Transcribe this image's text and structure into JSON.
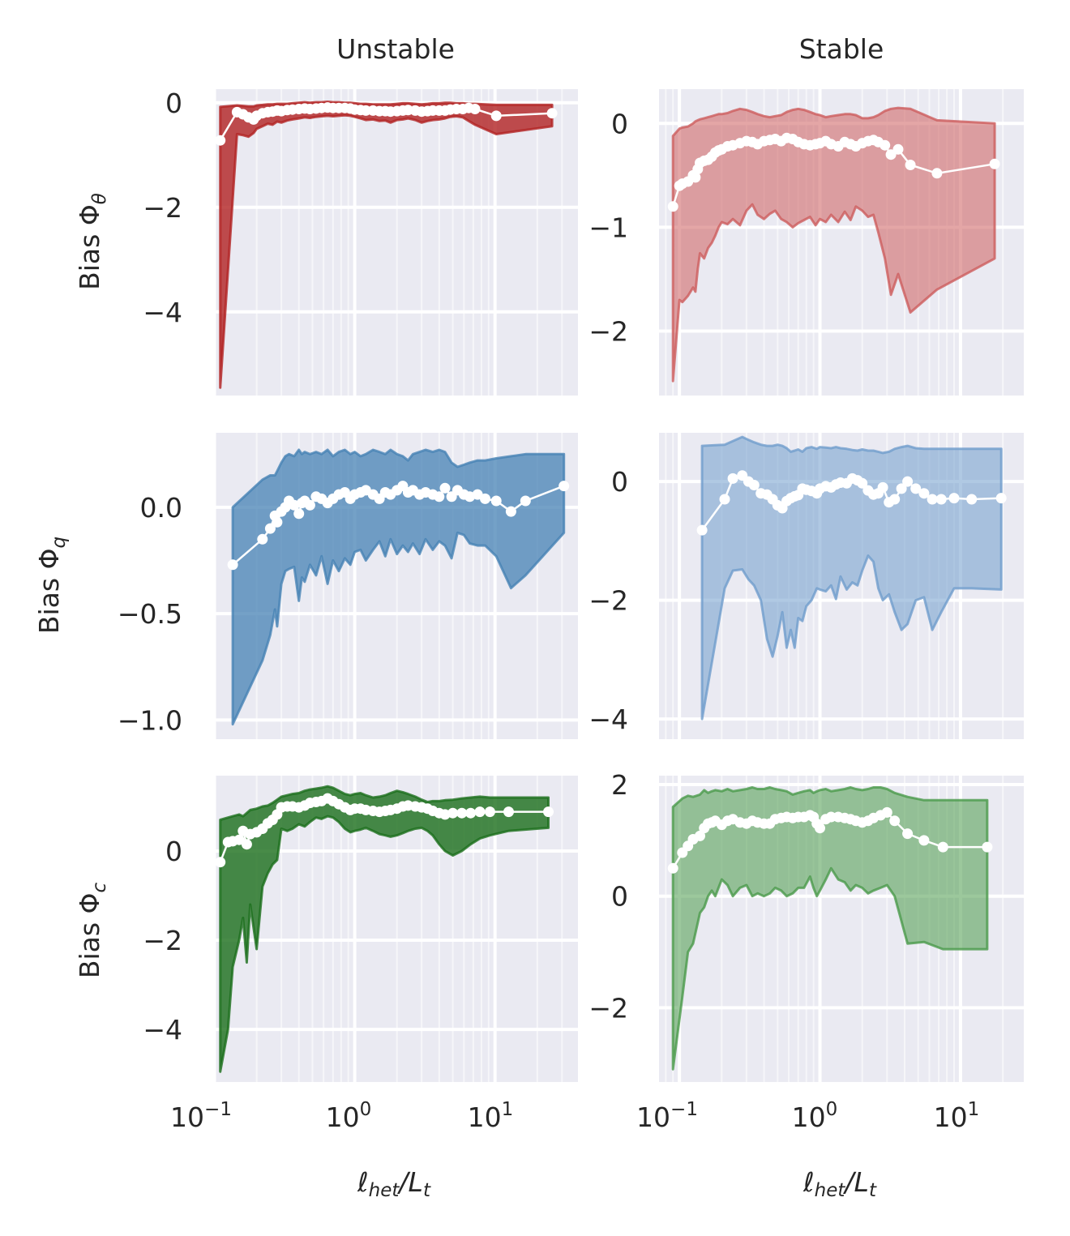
{
  "figure": {
    "column_titles": [
      "Unstable",
      "Stable"
    ],
    "ylabels": [
      {
        "main": "Bias Φ",
        "sub": "θ"
      },
      {
        "main": "Bias Φ",
        "sub": "q"
      },
      {
        "main": "Bias Φ",
        "sub": "c"
      }
    ],
    "xlabel": {
      "l": "ℓ",
      "l_sub": "het",
      "slash": "/L",
      "L_sub": "t"
    },
    "xtick_labels": [
      {
        "base": "10",
        "exp": "−1"
      },
      {
        "base": "10",
        "exp": "0"
      },
      {
        "base": "10",
        "exp": "1"
      }
    ],
    "colors": {
      "background": "#eaeaf2",
      "grid": "#ffffff",
      "unstable_theta": "#b22222",
      "stable_theta": "#cd5c5c",
      "unstable_q": "#4682b4",
      "stable_q": "#6f9ccc",
      "unstable_c": "#1a6e1a",
      "stable_c": "#4a9a4a",
      "median": "#ffffff"
    }
  },
  "chart_data": [
    {
      "type": "area",
      "panel": "unstable-theta",
      "title": "Unstable",
      "ylabel": "Bias Φθ",
      "xscale": "log",
      "xlim": [
        0.098,
        39
      ],
      "ylim": [
        -5.6,
        0.26
      ],
      "yticks": [
        0,
        -2,
        -4
      ],
      "ytick_labels": [
        "0",
        "−2",
        "−4"
      ],
      "color": "unstable_theta",
      "fill_opacity": 0.8,
      "x": [
        0.11,
        0.145,
        0.16,
        0.175,
        0.19,
        0.2,
        0.22,
        0.24,
        0.26,
        0.28,
        0.3,
        0.33,
        0.36,
        0.4,
        0.44,
        0.48,
        0.53,
        0.58,
        0.64,
        0.7,
        0.77,
        0.85,
        0.93,
        1.0,
        1.1,
        1.2,
        1.35,
        1.5,
        1.65,
        1.8,
        2.0,
        2.2,
        2.4,
        2.7,
        3.0,
        3.3,
        3.6,
        4.0,
        4.4,
        4.8,
        5.3,
        5.9,
        6.5,
        7.2,
        10.2,
        25.5
      ],
      "median": [
        -0.72,
        -0.18,
        -0.22,
        -0.28,
        -0.32,
        -0.25,
        -0.2,
        -0.18,
        -0.17,
        -0.15,
        -0.16,
        -0.14,
        -0.13,
        -0.12,
        -0.11,
        -0.12,
        -0.11,
        -0.1,
        -0.09,
        -0.1,
        -0.1,
        -0.1,
        -0.11,
        -0.13,
        -0.14,
        -0.15,
        -0.15,
        -0.16,
        -0.16,
        -0.17,
        -0.16,
        -0.15,
        -0.14,
        -0.15,
        -0.17,
        -0.16,
        -0.15,
        -0.15,
        -0.15,
        -0.13,
        -0.12,
        -0.12,
        -0.1,
        -0.12,
        -0.25,
        -0.2
      ],
      "upper": [
        -0.08,
        -0.05,
        -0.06,
        -0.07,
        -0.07,
        -0.05,
        -0.04,
        -0.03,
        -0.03,
        -0.02,
        -0.02,
        -0.02,
        -0.01,
        0.0,
        0.01,
        0.0,
        0.01,
        0.01,
        0.02,
        0.01,
        0.01,
        0.0,
        0.0,
        -0.01,
        -0.02,
        -0.02,
        -0.03,
        -0.03,
        -0.03,
        -0.03,
        -0.02,
        -0.01,
        -0.01,
        -0.02,
        -0.03,
        -0.02,
        -0.01,
        -0.01,
        0.0,
        0.0,
        -0.01,
        -0.01,
        -0.02,
        -0.02,
        -0.04,
        -0.04
      ],
      "lower": [
        -5.45,
        -0.6,
        -0.62,
        -0.65,
        -0.58,
        -0.5,
        -0.45,
        -0.4,
        -0.42,
        -0.36,
        -0.38,
        -0.34,
        -0.32,
        -0.3,
        -0.28,
        -0.29,
        -0.27,
        -0.26,
        -0.25,
        -0.26,
        -0.25,
        -0.24,
        -0.25,
        -0.27,
        -0.3,
        -0.33,
        -0.32,
        -0.35,
        -0.34,
        -0.38,
        -0.33,
        -0.32,
        -0.3,
        -0.33,
        -0.38,
        -0.35,
        -0.33,
        -0.32,
        -0.3,
        -0.27,
        -0.26,
        -0.28,
        -0.35,
        -0.42,
        -0.6,
        -0.45
      ]
    },
    {
      "type": "area",
      "panel": "stable-theta",
      "title": "Stable",
      "ylabel": "",
      "xscale": "log",
      "xlim": [
        0.0716,
        28.2
      ],
      "ylim": [
        -2.62,
        0.33
      ],
      "yticks": [
        0,
        -1,
        -2
      ],
      "ytick_labels": [
        "0",
        "−1",
        "−2"
      ],
      "color": "stable_theta",
      "fill_opacity": 0.55,
      "x": [
        0.09,
        0.1,
        0.105,
        0.115,
        0.125,
        0.13,
        0.135,
        0.14,
        0.15,
        0.16,
        0.17,
        0.18,
        0.19,
        0.2,
        0.22,
        0.24,
        0.27,
        0.3,
        0.33,
        0.36,
        0.4,
        0.44,
        0.48,
        0.53,
        0.58,
        0.64,
        0.7,
        0.77,
        0.85,
        0.93,
        1.0,
        1.1,
        1.2,
        1.35,
        1.5,
        1.65,
        1.8,
        2.0,
        2.2,
        2.4,
        2.6,
        2.9,
        3.2,
        3.6,
        4.4,
        6.8,
        17.5
      ],
      "median": [
        -0.8,
        -0.6,
        -0.58,
        -0.56,
        -0.5,
        -0.52,
        -0.44,
        -0.38,
        -0.36,
        -0.35,
        -0.32,
        -0.28,
        -0.26,
        -0.25,
        -0.22,
        -0.21,
        -0.19,
        -0.17,
        -0.18,
        -0.2,
        -0.17,
        -0.16,
        -0.15,
        -0.17,
        -0.14,
        -0.15,
        -0.18,
        -0.2,
        -0.21,
        -0.2,
        -0.19,
        -0.17,
        -0.2,
        -0.22,
        -0.18,
        -0.2,
        -0.22,
        -0.19,
        -0.17,
        -0.16,
        -0.18,
        -0.21,
        -0.3,
        -0.25,
        -0.4,
        -0.48,
        -0.39
      ],
      "upper": [
        -0.12,
        -0.05,
        -0.04,
        -0.03,
        0.0,
        0.02,
        0.03,
        0.04,
        0.05,
        0.06,
        0.07,
        0.08,
        0.09,
        0.09,
        0.1,
        0.12,
        0.14,
        0.13,
        0.11,
        0.09,
        0.07,
        0.06,
        0.07,
        0.08,
        0.11,
        0.13,
        0.14,
        0.13,
        0.11,
        0.09,
        0.08,
        0.06,
        0.07,
        0.08,
        0.09,
        0.09,
        0.08,
        0.05,
        0.05,
        0.06,
        0.08,
        0.12,
        0.14,
        0.15,
        0.14,
        0.03,
        0.0
      ],
      "lower": [
        -2.48,
        -1.7,
        -1.72,
        -1.66,
        -1.58,
        -1.62,
        -1.4,
        -1.25,
        -1.3,
        -1.2,
        -1.15,
        -1.08,
        -1.0,
        -0.95,
        -0.97,
        -0.92,
        -0.98,
        -0.84,
        -0.78,
        -0.88,
        -0.92,
        -0.87,
        -0.84,
        -0.92,
        -0.95,
        -1.0,
        -0.96,
        -0.93,
        -0.9,
        -0.98,
        -0.92,
        -0.95,
        -0.88,
        -0.95,
        -0.85,
        -0.93,
        -0.8,
        -0.84,
        -0.9,
        -0.88,
        -1.05,
        -1.3,
        -1.65,
        -1.45,
        -1.82,
        -1.6,
        -1.3
      ]
    },
    {
      "type": "area",
      "panel": "unstable-q",
      "title": "",
      "ylabel": "Bias Φq",
      "xscale": "log",
      "xlim": [
        0.098,
        39
      ],
      "ylim": [
        -1.09,
        0.35
      ],
      "yticks": [
        0.0,
        -0.5,
        -1.0
      ],
      "ytick_labels": [
        "0.0",
        "−0.5",
        "−1.0"
      ],
      "color": "unstable_q",
      "fill_opacity": 0.75,
      "x": [
        0.135,
        0.22,
        0.25,
        0.27,
        0.28,
        0.3,
        0.32,
        0.34,
        0.37,
        0.4,
        0.42,
        0.44,
        0.48,
        0.53,
        0.58,
        0.64,
        0.7,
        0.77,
        0.85,
        0.93,
        1.0,
        1.1,
        1.2,
        1.35,
        1.5,
        1.65,
        1.8,
        2.0,
        2.2,
        2.4,
        2.6,
        2.9,
        3.2,
        3.6,
        4.0,
        4.4,
        4.9,
        5.4,
        6.0,
        6.6,
        7.5,
        8.5,
        10.2,
        13.0,
        16.5,
        31.0
      ],
      "median": [
        -0.27,
        -0.15,
        -0.1,
        -0.04,
        -0.07,
        -0.02,
        0.0,
        0.03,
        0.01,
        -0.03,
        0.02,
        0.03,
        0.01,
        0.05,
        0.04,
        0.02,
        0.04,
        0.06,
        0.07,
        0.04,
        0.06,
        0.07,
        0.08,
        0.06,
        0.04,
        0.07,
        0.06,
        0.08,
        0.1,
        0.07,
        0.08,
        0.06,
        0.07,
        0.06,
        0.05,
        0.09,
        0.05,
        0.08,
        0.06,
        0.05,
        0.06,
        0.04,
        0.03,
        -0.02,
        0.03,
        0.1
      ],
      "upper": [
        0.0,
        0.13,
        0.15,
        0.15,
        0.17,
        0.21,
        0.24,
        0.25,
        0.24,
        0.27,
        0.25,
        0.26,
        0.25,
        0.26,
        0.25,
        0.27,
        0.24,
        0.26,
        0.27,
        0.25,
        0.26,
        0.24,
        0.25,
        0.27,
        0.26,
        0.25,
        0.27,
        0.25,
        0.24,
        0.22,
        0.25,
        0.26,
        0.27,
        0.26,
        0.27,
        0.26,
        0.21,
        0.19,
        0.2,
        0.21,
        0.22,
        0.22,
        0.23,
        0.24,
        0.25,
        0.25
      ],
      "lower": [
        -1.02,
        -0.72,
        -0.6,
        -0.48,
        -0.56,
        -0.36,
        -0.3,
        -0.29,
        -0.28,
        -0.44,
        -0.33,
        -0.35,
        -0.27,
        -0.32,
        -0.23,
        -0.36,
        -0.25,
        -0.3,
        -0.24,
        -0.27,
        -0.21,
        -0.2,
        -0.25,
        -0.2,
        -0.16,
        -0.23,
        -0.15,
        -0.22,
        -0.18,
        -0.21,
        -0.17,
        -0.22,
        -0.15,
        -0.2,
        -0.16,
        -0.18,
        -0.24,
        -0.12,
        -0.13,
        -0.17,
        -0.18,
        -0.18,
        -0.23,
        -0.38,
        -0.32,
        -0.12
      ]
    },
    {
      "type": "area",
      "panel": "stable-q",
      "title": "",
      "ylabel": "",
      "xscale": "log",
      "xlim": [
        0.0716,
        28.2
      ],
      "ylim": [
        -4.34,
        0.82
      ],
      "yticks": [
        0,
        -2,
        -4
      ],
      "ytick_labels": [
        "0",
        "−2",
        "−4"
      ],
      "color": "stable_q",
      "fill_opacity": 0.55,
      "x": [
        0.145,
        0.21,
        0.24,
        0.28,
        0.31,
        0.34,
        0.38,
        0.42,
        0.46,
        0.5,
        0.54,
        0.58,
        0.62,
        0.66,
        0.7,
        0.75,
        0.8,
        0.87,
        0.95,
        1.0,
        1.1,
        1.2,
        1.3,
        1.4,
        1.55,
        1.7,
        1.85,
        2.0,
        2.2,
        2.4,
        2.6,
        2.8,
        3.1,
        3.4,
        3.8,
        4.2,
        4.8,
        5.5,
        6.3,
        7.3,
        9.0,
        12.0,
        19.5
      ],
      "median": [
        -0.82,
        -0.3,
        0.05,
        0.1,
        0.0,
        -0.06,
        -0.2,
        -0.22,
        -0.3,
        -0.4,
        -0.45,
        -0.33,
        -0.28,
        -0.25,
        -0.23,
        -0.12,
        -0.14,
        -0.16,
        -0.2,
        -0.12,
        -0.08,
        -0.1,
        -0.05,
        -0.02,
        -0.03,
        0.05,
        0.02,
        -0.03,
        -0.15,
        -0.22,
        -0.2,
        -0.1,
        -0.35,
        -0.3,
        -0.12,
        0.0,
        -0.12,
        -0.2,
        -0.3,
        -0.3,
        -0.28,
        -0.3,
        -0.28
      ],
      "upper": [
        0.6,
        0.62,
        0.68,
        0.75,
        0.7,
        0.66,
        0.62,
        0.6,
        0.6,
        0.62,
        0.6,
        0.56,
        0.5,
        0.52,
        0.54,
        0.5,
        0.56,
        0.58,
        0.55,
        0.58,
        0.57,
        0.56,
        0.58,
        0.56,
        0.55,
        0.53,
        0.52,
        0.54,
        0.52,
        0.52,
        0.5,
        0.48,
        0.5,
        0.55,
        0.58,
        0.6,
        0.56,
        0.55,
        0.55,
        0.55,
        0.55,
        0.55,
        0.55
      ],
      "lower": [
        -4.0,
        -1.8,
        -1.5,
        -1.48,
        -1.65,
        -1.75,
        -2.0,
        -2.65,
        -2.95,
        -2.6,
        -2.2,
        -2.8,
        -2.5,
        -2.8,
        -2.3,
        -2.35,
        -2.1,
        -2.0,
        -1.8,
        -1.82,
        -1.85,
        -1.75,
        -1.98,
        -1.6,
        -1.82,
        -1.7,
        -1.75,
        -1.5,
        -1.25,
        -1.35,
        -1.8,
        -2.0,
        -1.9,
        -2.2,
        -2.5,
        -2.4,
        -2.0,
        -1.95,
        -2.5,
        -2.2,
        -1.8,
        -1.8,
        -1.82
      ]
    },
    {
      "type": "area",
      "panel": "unstable-c",
      "title": "",
      "ylabel": "Bias Φc",
      "xscale": "log",
      "xlim": [
        0.098,
        39
      ],
      "ylim": [
        -5.18,
        1.69
      ],
      "yticks": [
        0,
        -2,
        -4
      ],
      "ytick_labels": [
        "0",
        "−2",
        "−4"
      ],
      "color": "unstable_c",
      "fill_opacity": 0.8,
      "x": [
        0.11,
        0.125,
        0.135,
        0.15,
        0.16,
        0.17,
        0.18,
        0.2,
        0.22,
        0.24,
        0.26,
        0.28,
        0.3,
        0.33,
        0.36,
        0.4,
        0.44,
        0.48,
        0.53,
        0.58,
        0.64,
        0.7,
        0.77,
        0.85,
        0.93,
        1.0,
        1.1,
        1.2,
        1.35,
        1.5,
        1.65,
        1.8,
        2.0,
        2.2,
        2.4,
        2.7,
        3.0,
        3.3,
        3.6,
        4.0,
        4.4,
        5.0,
        5.8,
        6.7,
        7.8,
        9.2,
        12.5,
        24.0
      ],
      "median": [
        -0.25,
        0.2,
        0.22,
        0.25,
        0.45,
        0.15,
        0.38,
        0.42,
        0.5,
        0.62,
        0.7,
        0.82,
        0.98,
        1.0,
        1.0,
        0.98,
        1.02,
        1.08,
        1.1,
        1.12,
        1.18,
        1.12,
        1.05,
        0.98,
        0.92,
        0.95,
        0.95,
        0.92,
        0.9,
        0.88,
        0.9,
        0.92,
        0.95,
        1.0,
        1.02,
        1.0,
        0.98,
        0.95,
        0.9,
        0.85,
        0.82,
        0.85,
        0.85,
        0.85,
        0.88,
        0.88,
        0.88,
        0.88
      ],
      "upper": [
        0.7,
        0.75,
        0.78,
        0.82,
        0.78,
        0.85,
        0.92,
        0.95,
        1.0,
        1.02,
        1.08,
        1.15,
        1.22,
        1.25,
        1.28,
        1.3,
        1.35,
        1.38,
        1.4,
        1.42,
        1.45,
        1.42,
        1.35,
        1.28,
        1.25,
        1.28,
        1.3,
        1.25,
        1.2,
        1.22,
        1.25,
        1.3,
        1.35,
        1.32,
        1.28,
        1.22,
        1.15,
        1.1,
        1.12,
        1.12,
        1.14,
        1.15,
        1.18,
        1.2,
        1.22,
        1.2,
        1.2,
        1.2
      ],
      "lower": [
        -4.95,
        -4.0,
        -2.6,
        -2.0,
        -1.5,
        -2.5,
        -1.2,
        -2.2,
        -0.8,
        -0.5,
        -0.3,
        -0.2,
        0.5,
        0.45,
        0.5,
        0.6,
        0.55,
        0.65,
        0.75,
        0.72,
        0.78,
        0.75,
        0.65,
        0.5,
        0.42,
        0.45,
        0.48,
        0.52,
        0.45,
        0.38,
        0.35,
        0.32,
        0.35,
        0.4,
        0.45,
        0.5,
        0.52,
        0.45,
        0.35,
        0.15,
        0.0,
        -0.1,
        0.0,
        0.15,
        0.28,
        0.35,
        0.45,
        0.52
      ]
    },
    {
      "type": "area",
      "panel": "stable-c",
      "title": "",
      "ylabel": "",
      "xscale": "log",
      "xlim": [
        0.0716,
        28.2
      ],
      "ylim": [
        -3.33,
        2.16
      ],
      "yticks": [
        2,
        0,
        -2
      ],
      "ytick_labels": [
        "2",
        "0",
        "−2"
      ],
      "color": "stable_c",
      "fill_opacity": 0.55,
      "x": [
        0.09,
        0.105,
        0.115,
        0.125,
        0.14,
        0.15,
        0.16,
        0.17,
        0.18,
        0.2,
        0.22,
        0.24,
        0.27,
        0.3,
        0.33,
        0.36,
        0.4,
        0.44,
        0.48,
        0.53,
        0.58,
        0.64,
        0.7,
        0.77,
        0.85,
        0.9,
        0.95,
        1.0,
        1.1,
        1.2,
        1.35,
        1.5,
        1.65,
        1.8,
        2.0,
        2.2,
        2.4,
        2.7,
        3.0,
        3.4,
        4.2,
        5.5,
        7.5,
        15.5
      ],
      "median": [
        0.5,
        0.78,
        0.9,
        1.02,
        1.08,
        1.22,
        1.3,
        1.32,
        1.35,
        1.28,
        1.35,
        1.38,
        1.32,
        1.3,
        1.35,
        1.32,
        1.3,
        1.3,
        1.38,
        1.4,
        1.42,
        1.4,
        1.42,
        1.42,
        1.45,
        1.42,
        1.3,
        1.22,
        1.38,
        1.42,
        1.42,
        1.4,
        1.38,
        1.35,
        1.32,
        1.35,
        1.4,
        1.45,
        1.5,
        1.35,
        1.12,
        1.0,
        0.88,
        0.88
      ],
      "upper": [
        1.6,
        1.75,
        1.8,
        1.78,
        1.82,
        1.9,
        1.85,
        1.88,
        1.9,
        1.88,
        1.92,
        1.88,
        1.9,
        1.92,
        1.95,
        1.92,
        1.92,
        1.95,
        1.92,
        1.9,
        1.88,
        1.82,
        1.85,
        1.88,
        1.9,
        1.85,
        1.88,
        1.9,
        1.92,
        1.88,
        1.9,
        1.92,
        1.95,
        1.92,
        1.9,
        1.92,
        1.95,
        1.95,
        1.92,
        1.85,
        1.78,
        1.72,
        1.72,
        1.72
      ],
      "lower": [
        -3.1,
        -1.8,
        -1.0,
        -0.85,
        -0.3,
        -0.2,
        0.0,
        0.1,
        0.0,
        0.3,
        0.2,
        0.0,
        0.15,
        0.2,
        0.0,
        0.05,
        0.0,
        0.05,
        0.15,
        0.1,
        0.0,
        0.05,
        0.15,
        0.15,
        0.35,
        0.15,
        0.0,
        0.1,
        0.3,
        0.5,
        0.3,
        0.25,
        0.1,
        0.2,
        0.15,
        0.05,
        0.1,
        0.15,
        0.2,
        0.0,
        -0.85,
        -0.82,
        -0.95,
        -0.95
      ]
    }
  ]
}
